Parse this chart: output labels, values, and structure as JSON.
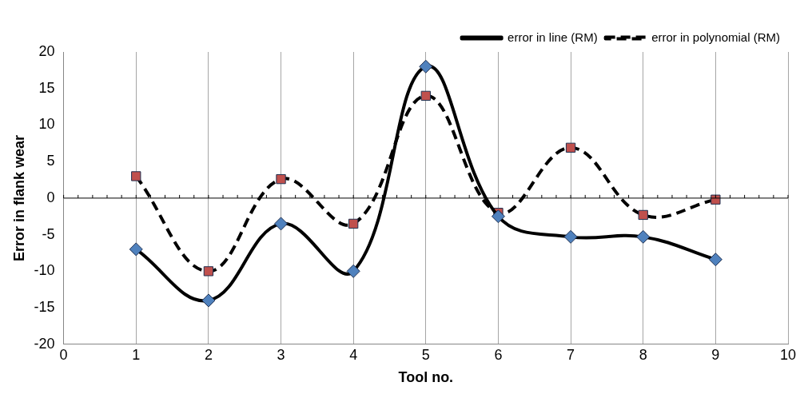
{
  "chart_data": {
    "type": "line",
    "xlabel": "Tool no.",
    "ylabel": "Error in flank wear",
    "xlim": [
      0,
      10
    ],
    "xticks": [
      0,
      1,
      2,
      3,
      4,
      5,
      6,
      7,
      8,
      9,
      10
    ],
    "ylim": [
      -20,
      20
    ],
    "yticks": [
      -20,
      -15,
      -10,
      -5,
      0,
      5,
      10,
      15,
      20
    ],
    "grid": "x",
    "legend": "top right",
    "ref_lines": [
      {
        "axis": "y",
        "value": 0
      }
    ],
    "series": [
      {
        "name": "error in line (RM)",
        "color": "#4f81bd",
        "marker": "diamond",
        "line_style": "solid",
        "x": [
          1,
          2,
          3,
          4,
          5,
          6,
          7,
          8,
          9
        ],
        "values": [
          -7,
          -14,
          -3.5,
          -10,
          18,
          -2.5,
          -5.3,
          -5.3,
          -8.4
        ]
      },
      {
        "name": "error in polynomial (RM)",
        "color": "#c0504d",
        "marker": "square",
        "line_style": "dashed",
        "x": [
          1,
          2,
          3,
          4,
          5,
          6,
          7,
          8,
          9
        ],
        "values": [
          3,
          -10,
          2.6,
          -3.5,
          14,
          -2,
          6.9,
          -2.3,
          -0.2
        ]
      }
    ]
  }
}
